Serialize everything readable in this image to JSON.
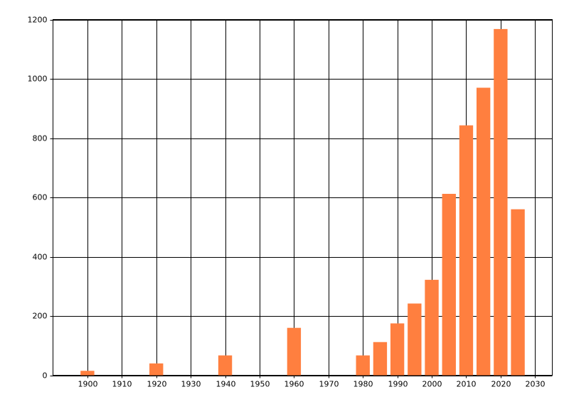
{
  "chart_data": {
    "type": "bar",
    "x": [
      1900,
      1920,
      1940,
      1960,
      1980,
      1985,
      1990,
      1995,
      2000,
      2005,
      2010,
      2015,
      2020,
      2025
    ],
    "values": [
      15,
      40,
      67,
      160,
      67,
      112,
      175,
      242,
      322,
      612,
      843,
      970,
      1168,
      560
    ],
    "color": "#ff7f3f",
    "xlim": [
      1890,
      2035
    ],
    "xticks": [
      1900,
      1910,
      1920,
      1930,
      1940,
      1950,
      1960,
      1970,
      1980,
      1990,
      2000,
      2010,
      2020,
      2030
    ],
    "ylim": [
      0,
      1200
    ],
    "yticks": [
      0,
      200,
      400,
      600,
      800,
      1000,
      1200
    ],
    "grid": true
  }
}
